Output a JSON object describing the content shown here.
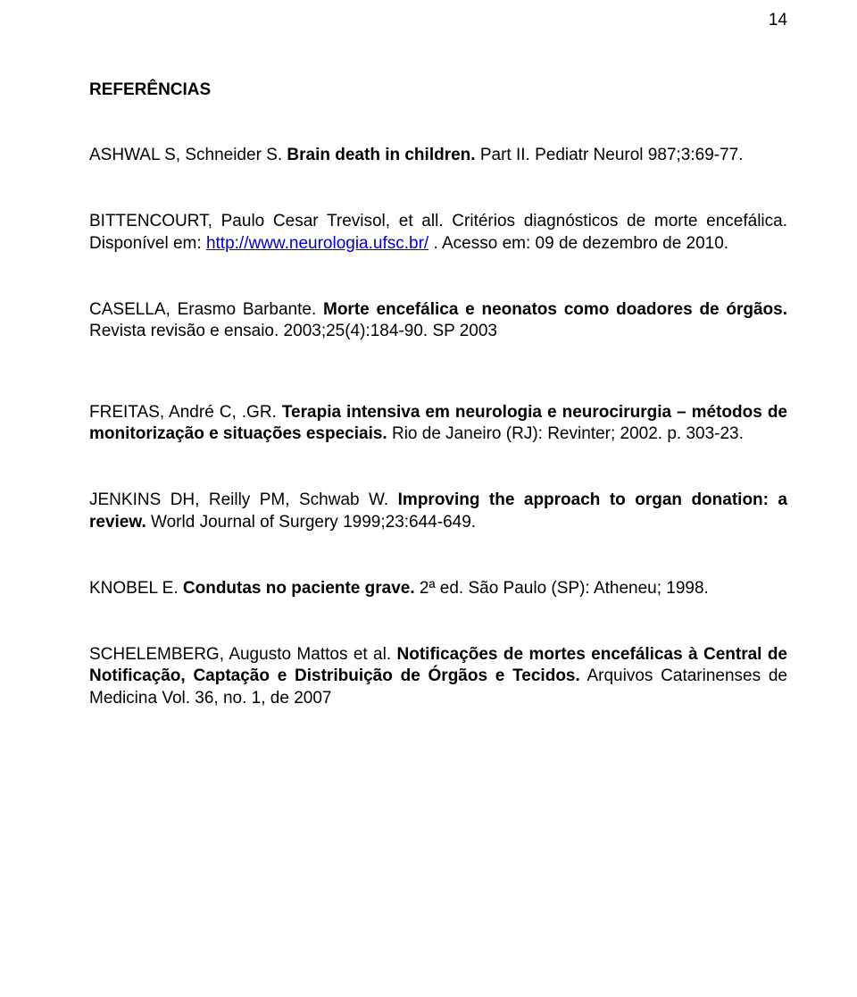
{
  "page_number": "14",
  "heading": "REFERÊNCIAS",
  "refs": {
    "r1_a": "ASHWAL S, Schneider S. ",
    "r1_b": "Brain death in children.",
    "r1_c": " Part II. Pediatr Neurol 987;3:69-77.",
    "r2_a": "BITTENCOURT, Paulo Cesar Trevisol, et all. Critérios diagnósticos de morte encefálica. Disponível em: ",
    "r2_link": "http://www.neurologia.ufsc.br/",
    "r2_b": " . Acesso em: 09 de dezembro de 2010.",
    "r3_a": "CASELLA, Erasmo Barbante. ",
    "r3_b": "Morte encefálica e neonatos como doadores de órgãos.",
    "r3_c": " Revista revisão e ensaio. 2003;25(4):184-90. SP 2003",
    "r4_a": "FREITAS, André C, .GR. ",
    "r4_b": "Terapia intensiva em neurologia e neurocirurgia – métodos de monitorização e situações especiais.",
    "r4_c": " Rio de Janeiro (RJ): Revinter; 2002. p. 303-23.",
    "r5_a": "JENKINS DH, Reilly PM, Schwab W. ",
    "r5_b": "Improving the approach to organ donation: a review.",
    "r5_c": " World Journal of Surgery 1999;23:644-649.",
    "r6_a": "KNOBEL E. ",
    "r6_b": "Condutas no paciente grave.",
    "r6_c": " 2ª ed. São Paulo (SP): Atheneu; 1998.",
    "r7_a": "SCHELEMBERG, Augusto Mattos et al. ",
    "r7_b": "Notificações de mortes encefálicas à Central de Notificação, Captação e Distribuição de Órgãos e Tecidos.",
    "r7_c": " Arquivos Catarinenses de Medicina Vol. 36, no. 1, de 2007"
  }
}
